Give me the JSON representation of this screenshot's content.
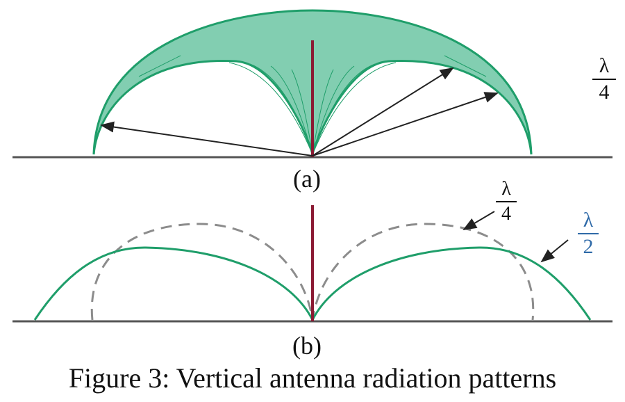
{
  "figure": {
    "label_a": "(a)",
    "label_b": "(b)",
    "caption": "Figure 3: Vertical antenna radiation patterns",
    "top_fraction": {
      "numerator": "λ",
      "denominator": "4"
    },
    "bottom_quarter_fraction": {
      "numerator": "λ",
      "denominator": "4"
    },
    "bottom_half_fraction": {
      "numerator": "λ",
      "denominator": "2"
    }
  },
  "colors": {
    "pattern_green": "#1f9e6a",
    "fill_green": "#6cc6a3",
    "antenna": "#8b1a33",
    "ground": "#555555",
    "dashed_gray": "#8c8c8c",
    "arrow": "#222222",
    "lambda_half_blue": "#2f6aa8"
  }
}
